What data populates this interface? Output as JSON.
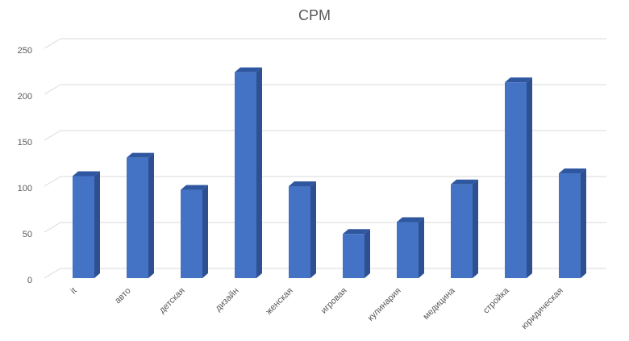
{
  "chart_data": {
    "type": "bar",
    "title": "CPM",
    "categories": [
      "it",
      "авто",
      "детская",
      "дизайн",
      "женская",
      "игровая",
      "кулинария",
      "медицина",
      "стройка",
      "юридическая"
    ],
    "values": [
      111,
      131,
      96,
      224,
      100,
      48,
      61,
      102,
      213,
      114
    ],
    "color": "#4472c4",
    "ylim": [
      0,
      250
    ],
    "yticks": [
      0,
      50,
      100,
      150,
      200,
      250
    ],
    "grid": true
  }
}
